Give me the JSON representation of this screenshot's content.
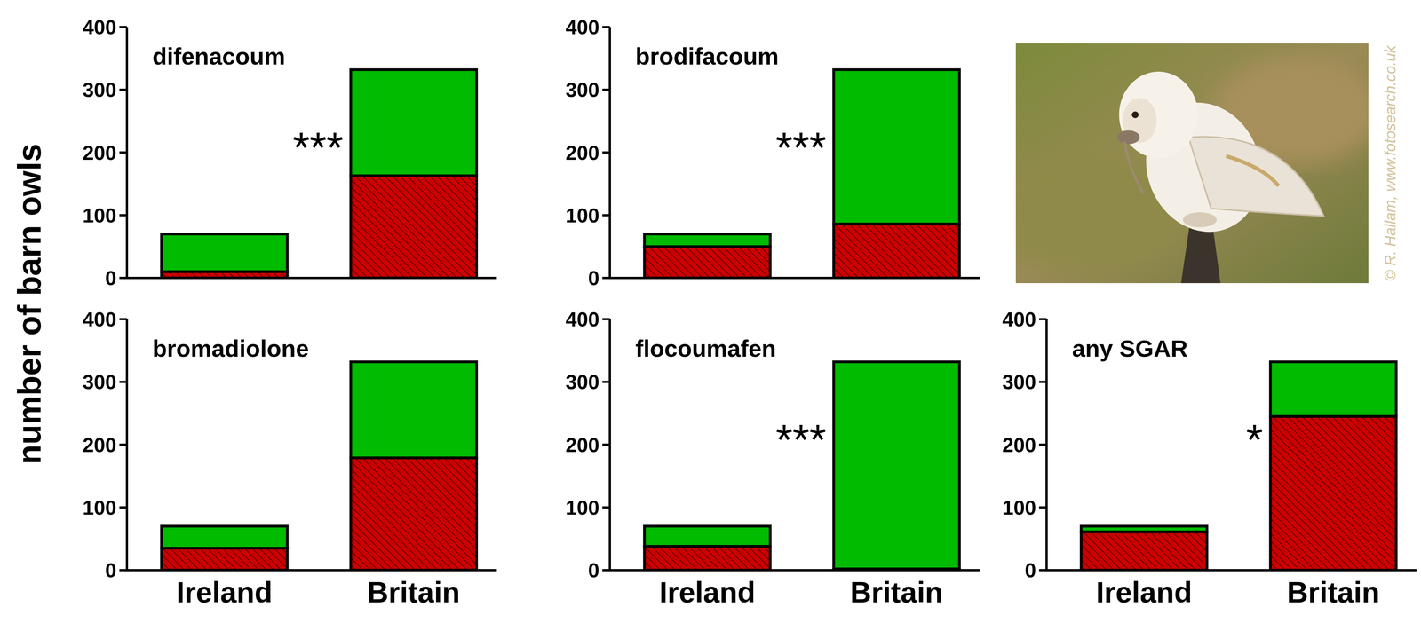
{
  "chart_data": [
    {
      "type": "bar",
      "stacked": true,
      "title": "difenacoum",
      "categories": [
        "Ireland",
        "Britain"
      ],
      "series": [
        {
          "color": "#cc0000",
          "values": [
            10,
            163
          ]
        },
        {
          "color": "#00bb00",
          "values": [
            60,
            169
          ]
        }
      ],
      "ylim": [
        0,
        400
      ],
      "yticks": [
        0,
        100,
        200,
        300,
        400
      ],
      "annotation": "***",
      "tick_labels": "y"
    },
    {
      "type": "bar",
      "stacked": true,
      "title": "brodifacoum",
      "categories": [
        "Ireland",
        "Britain"
      ],
      "series": [
        {
          "color": "#cc0000",
          "values": [
            50,
            86
          ]
        },
        {
          "color": "#00bb00",
          "values": [
            20,
            246
          ]
        }
      ],
      "ylim": [
        0,
        400
      ],
      "yticks": [
        0,
        100,
        200,
        300,
        400
      ],
      "annotation": "***",
      "tick_labels": "y"
    },
    {
      "type": "bar",
      "stacked": true,
      "title": "bromadiolone",
      "categories": [
        "Ireland",
        "Britain"
      ],
      "series": [
        {
          "color": "#cc0000",
          "values": [
            35,
            179
          ]
        },
        {
          "color": "#00bb00",
          "values": [
            35,
            153
          ]
        }
      ],
      "ylim": [
        0,
        400
      ],
      "yticks": [
        0,
        100,
        200,
        300,
        400
      ]
    },
    {
      "type": "bar",
      "stacked": true,
      "title": "flocoumafen",
      "categories": [
        "Ireland",
        "Britain"
      ],
      "series": [
        {
          "color": "#cc0000",
          "values": [
            38,
            2
          ]
        },
        {
          "color": "#00bb00",
          "values": [
            32,
            330
          ]
        }
      ],
      "ylim": [
        0,
        400
      ],
      "yticks": [
        0,
        100,
        200,
        300,
        400
      ],
      "annotation": "***"
    },
    {
      "type": "bar",
      "stacked": true,
      "title": "any SGAR",
      "categories": [
        "Ireland",
        "Britain"
      ],
      "series": [
        {
          "color": "#cc0000",
          "values": [
            61,
            245
          ]
        },
        {
          "color": "#00bb00",
          "values": [
            9,
            87
          ]
        }
      ],
      "ylim": [
        0,
        400
      ],
      "yticks": [
        0,
        100,
        200,
        300,
        400
      ],
      "annotation": "*"
    }
  ],
  "ylabel": "number of barn owls",
  "image_credit": "© R. Hallam, www.fotosearch.co.uk"
}
